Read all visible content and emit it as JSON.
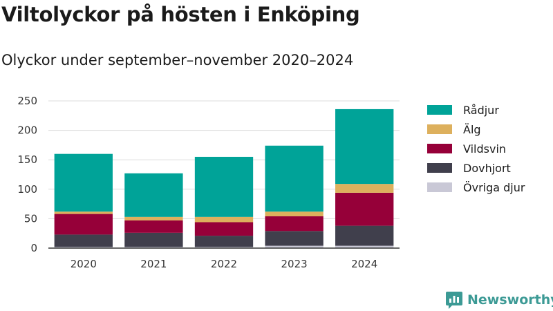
{
  "title": "Viltolyckor på hösten i Enköping",
  "subtitle": "Olyckor under september–november 2020–2024",
  "brand": "Newsworthy",
  "chart_data": {
    "type": "bar",
    "stacked": true,
    "categories": [
      "2020",
      "2021",
      "2022",
      "2023",
      "2024"
    ],
    "ylim": [
      0,
      250
    ],
    "yticks": [
      0,
      50,
      100,
      150,
      200,
      250
    ],
    "legend_position": "right",
    "series": [
      {
        "name": "Övriga djur",
        "color": "#c9c8d6",
        "values": [
          2,
          2,
          2,
          4,
          4
        ]
      },
      {
        "name": "Dovhjort",
        "color": "#403f4c",
        "values": [
          21,
          24,
          19,
          25,
          34
        ]
      },
      {
        "name": "Vildsvin",
        "color": "#960039",
        "values": [
          35,
          21,
          23,
          25,
          56
        ]
      },
      {
        "name": "Älg",
        "color": "#ddb05d",
        "values": [
          4,
          6,
          9,
          8,
          15
        ]
      },
      {
        "name": "Rådjur",
        "color": "#00a398",
        "values": [
          98,
          74,
          102,
          112,
          127
        ]
      }
    ],
    "legend_order": [
      "Rådjur",
      "Älg",
      "Vildsvin",
      "Dovhjort",
      "Övriga djur"
    ]
  }
}
